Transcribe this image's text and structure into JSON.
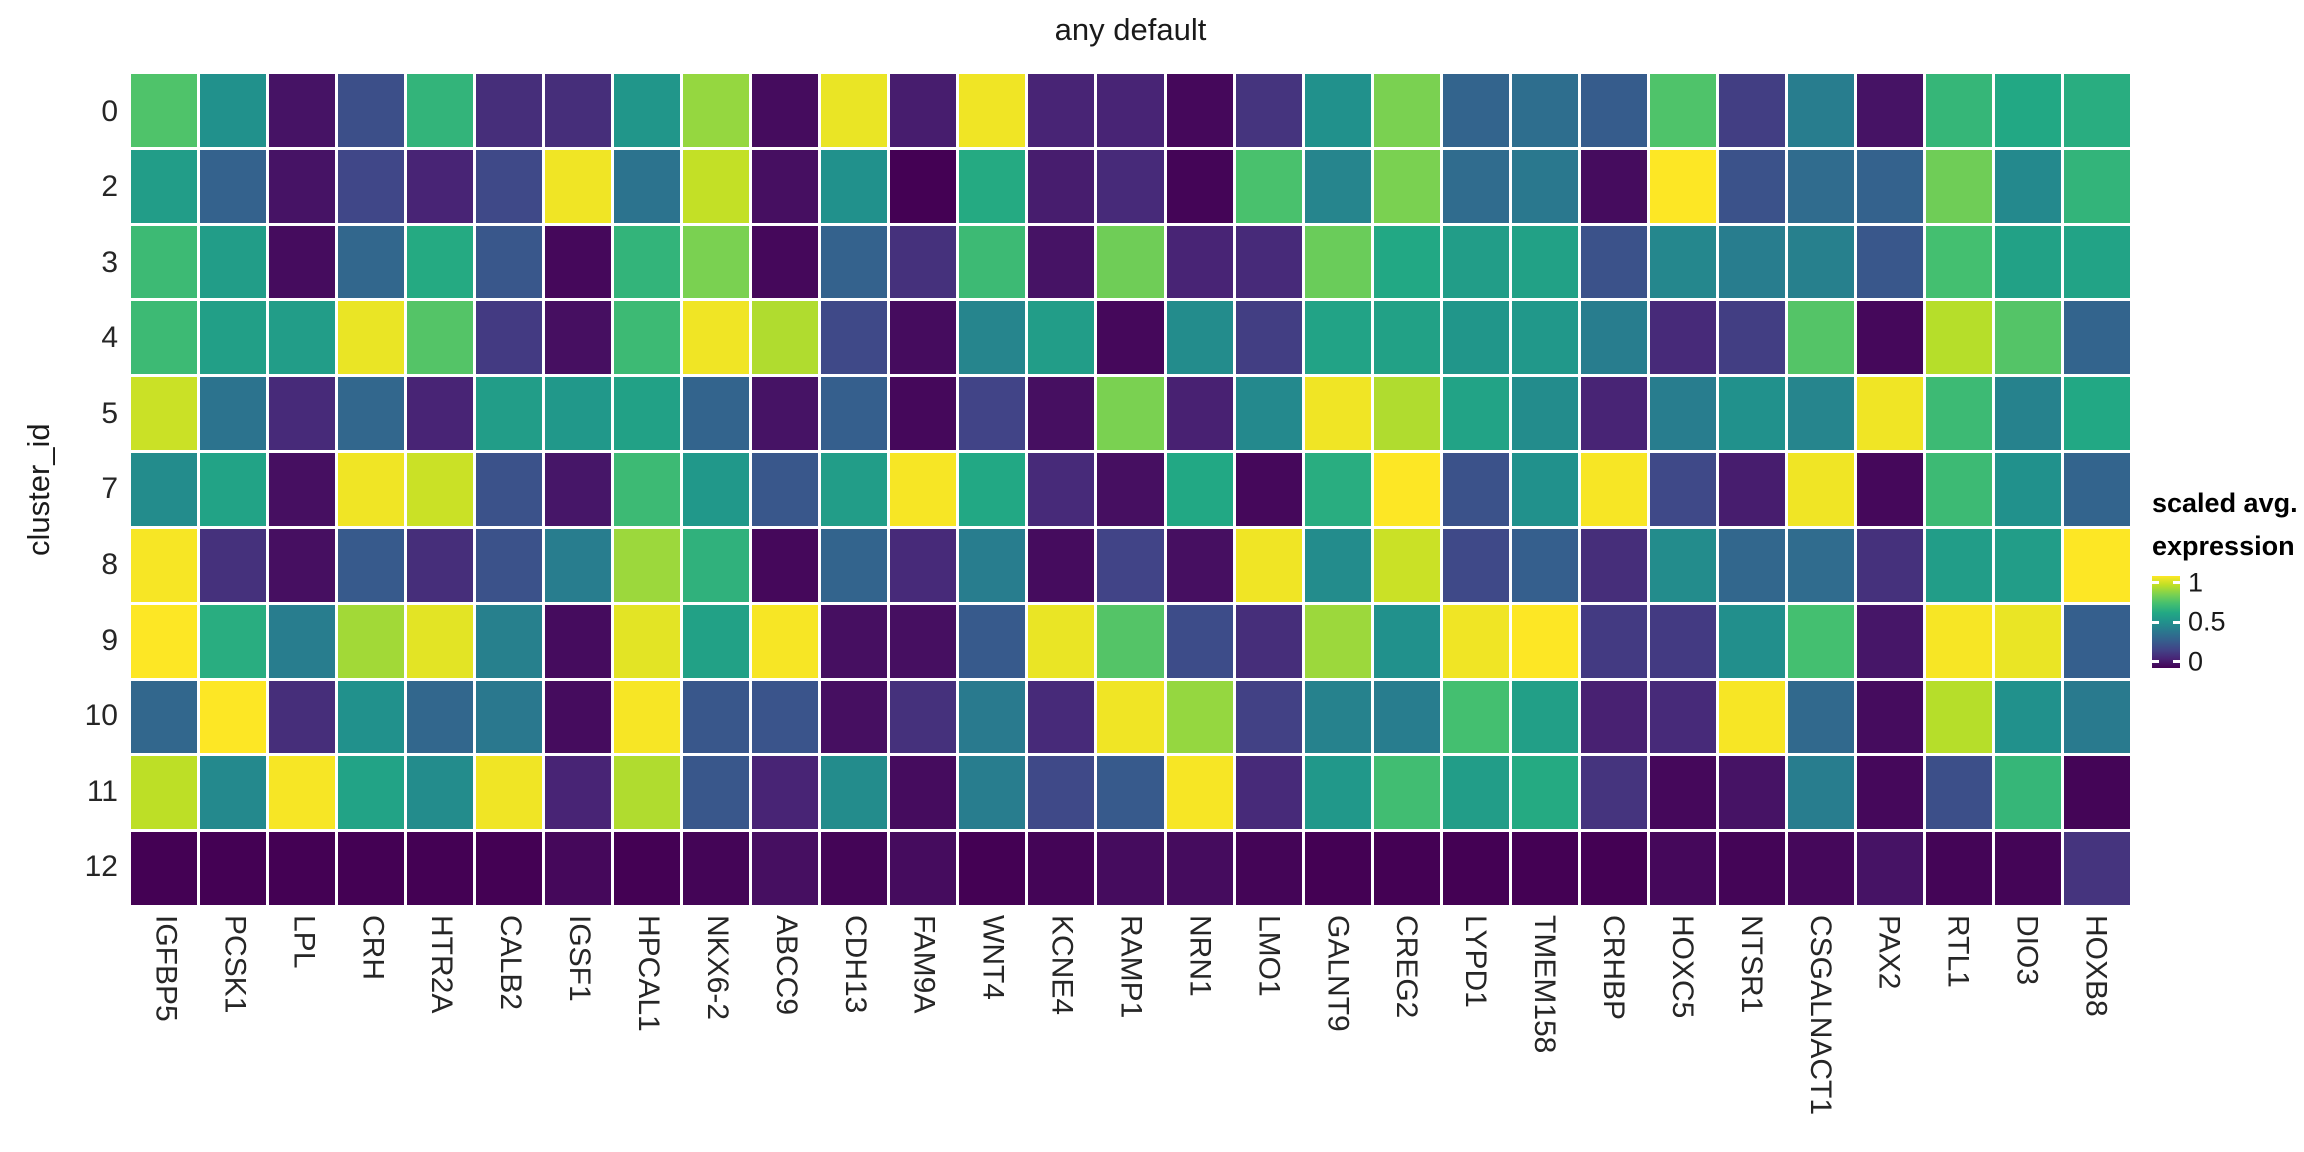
{
  "title": "any default",
  "y_axis": {
    "title": "cluster_id",
    "labels": [
      "0",
      "2",
      "3",
      "4",
      "5",
      "7",
      "8",
      "9",
      "10",
      "11",
      "12"
    ]
  },
  "x_axis": {
    "genes": [
      "IGFBP5",
      "PCSK1",
      "LPL",
      "CRH",
      "HTR2A",
      "CALB2",
      "IGSF1",
      "HPCAL1",
      "NKX6-2",
      "ABCC9",
      "CDH13",
      "FAM9A",
      "WNT4",
      "KCNE4",
      "RAMP1",
      "NRN1",
      "LMO1",
      "GALNT9",
      "CREG2",
      "LYPD1",
      "TMEM158",
      "CRHBP",
      "HOXC5",
      "NTSR1",
      "CSGALNACT1",
      "PAX2",
      "RTL1",
      "DIO3",
      "HOXB8"
    ]
  },
  "legend": {
    "title_line1": "scaled avg.",
    "title_line2": "expression",
    "ticks": [
      {
        "label": "1",
        "position": 0.07
      },
      {
        "label": "0.5",
        "position": 0.5
      },
      {
        "label": "0",
        "position": 0.93
      }
    ]
  },
  "colors": {
    "background": "#ffffff",
    "grid_gap": "#ffffff",
    "text": "#262626",
    "viridis_stops": [
      "#440154",
      "#482475",
      "#414487",
      "#355f8d",
      "#2a788e",
      "#21918c",
      "#22a884",
      "#44bf70",
      "#7ad151",
      "#bddf26",
      "#fde725"
    ]
  },
  "chart_data": {
    "type": "heatmap",
    "title": "any default",
    "xlabel": "",
    "ylabel": "cluster_id",
    "legend_title": "scaled avg. expression",
    "scale_range": [
      0,
      1
    ],
    "x": [
      "IGFBP5",
      "PCSK1",
      "LPL",
      "CRH",
      "HTR2A",
      "CALB2",
      "IGSF1",
      "HPCAL1",
      "NKX6-2",
      "ABCC9",
      "CDH13",
      "FAM9A",
      "WNT4",
      "KCNE4",
      "RAMP1",
      "NRN1",
      "LMO1",
      "GALNT9",
      "CREG2",
      "LYPD1",
      "TMEM158",
      "CRHBP",
      "HOXC5",
      "NTSR1",
      "CSGALNACT1",
      "PAX2",
      "RTL1",
      "DIO3",
      "HOXB8"
    ],
    "rows": [
      {
        "cluster": "0",
        "values": [
          0.72,
          0.5,
          0.05,
          0.24,
          0.65,
          0.13,
          0.13,
          0.52,
          0.84,
          0.03,
          0.97,
          0.08,
          0.98,
          0.1,
          0.1,
          0.02,
          0.15,
          0.5,
          0.8,
          0.32,
          0.36,
          0.29,
          0.72,
          0.18,
          0.42,
          0.05,
          0.66,
          0.6,
          0.62
        ]
      },
      {
        "cluster": "2",
        "values": [
          0.55,
          0.31,
          0.05,
          0.21,
          0.1,
          0.22,
          0.98,
          0.38,
          0.91,
          0.04,
          0.5,
          0.0,
          0.61,
          0.08,
          0.12,
          0.01,
          0.71,
          0.45,
          0.8,
          0.35,
          0.4,
          0.03,
          1.0,
          0.25,
          0.35,
          0.31,
          0.78,
          0.47,
          0.65
        ]
      },
      {
        "cluster": "3",
        "values": [
          0.68,
          0.55,
          0.03,
          0.33,
          0.61,
          0.27,
          0.02,
          0.65,
          0.8,
          0.02,
          0.31,
          0.14,
          0.68,
          0.05,
          0.78,
          0.1,
          0.12,
          0.77,
          0.6,
          0.55,
          0.57,
          0.25,
          0.46,
          0.42,
          0.43,
          0.27,
          0.7,
          0.57,
          0.58
        ]
      },
      {
        "cluster": "4",
        "values": [
          0.68,
          0.56,
          0.55,
          0.97,
          0.73,
          0.17,
          0.04,
          0.68,
          0.98,
          0.88,
          0.22,
          0.03,
          0.45,
          0.55,
          0.02,
          0.48,
          0.18,
          0.58,
          0.57,
          0.52,
          0.53,
          0.42,
          0.12,
          0.18,
          0.73,
          0.02,
          0.89,
          0.73,
          0.32
        ]
      },
      {
        "cluster": "5",
        "values": [
          0.92,
          0.38,
          0.12,
          0.33,
          0.1,
          0.55,
          0.53,
          0.57,
          0.32,
          0.05,
          0.3,
          0.02,
          0.2,
          0.04,
          0.8,
          0.09,
          0.47,
          0.98,
          0.88,
          0.58,
          0.48,
          0.1,
          0.42,
          0.5,
          0.45,
          0.98,
          0.68,
          0.44,
          0.6
        ]
      },
      {
        "cluster": "7",
        "values": [
          0.48,
          0.58,
          0.04,
          0.98,
          0.92,
          0.25,
          0.06,
          0.68,
          0.53,
          0.27,
          0.55,
          0.99,
          0.6,
          0.12,
          0.04,
          0.6,
          0.02,
          0.62,
          1.0,
          0.25,
          0.5,
          0.99,
          0.22,
          0.08,
          0.98,
          0.02,
          0.68,
          0.5,
          0.32
        ]
      },
      {
        "cluster": "8",
        "values": [
          0.99,
          0.14,
          0.04,
          0.28,
          0.13,
          0.25,
          0.42,
          0.85,
          0.64,
          0.02,
          0.32,
          0.12,
          0.42,
          0.03,
          0.2,
          0.04,
          0.98,
          0.48,
          0.92,
          0.22,
          0.3,
          0.13,
          0.48,
          0.33,
          0.35,
          0.14,
          0.55,
          0.55,
          1.0
        ]
      },
      {
        "cluster": "9",
        "values": [
          1.0,
          0.62,
          0.42,
          0.86,
          0.96,
          0.43,
          0.03,
          0.96,
          0.57,
          0.99,
          0.04,
          0.04,
          0.28,
          0.97,
          0.73,
          0.23,
          0.13,
          0.85,
          0.5,
          0.98,
          1.0,
          0.17,
          0.17,
          0.49,
          0.7,
          0.06,
          0.99,
          0.97,
          0.3
        ]
      },
      {
        "cluster": "10",
        "values": [
          0.33,
          1.0,
          0.13,
          0.5,
          0.33,
          0.4,
          0.03,
          0.99,
          0.27,
          0.26,
          0.04,
          0.14,
          0.41,
          0.12,
          0.98,
          0.84,
          0.19,
          0.44,
          0.42,
          0.7,
          0.56,
          0.09,
          0.12,
          0.99,
          0.34,
          0.03,
          0.89,
          0.5,
          0.41
        ]
      },
      {
        "cluster": "11",
        "values": [
          0.9,
          0.47,
          0.99,
          0.58,
          0.48,
          0.98,
          0.1,
          0.88,
          0.27,
          0.1,
          0.48,
          0.03,
          0.42,
          0.22,
          0.28,
          0.99,
          0.12,
          0.53,
          0.69,
          0.55,
          0.61,
          0.15,
          0.02,
          0.05,
          0.42,
          0.02,
          0.24,
          0.66,
          0.01
        ]
      },
      {
        "cluster": "12",
        "values": [
          0.0,
          0.0,
          0.0,
          0.0,
          0.0,
          0.0,
          0.02,
          0.0,
          0.01,
          0.04,
          0.01,
          0.03,
          0.0,
          0.01,
          0.03,
          0.03,
          0.01,
          0.0,
          0.0,
          0.0,
          0.0,
          0.0,
          0.02,
          0.01,
          0.02,
          0.05,
          0.01,
          0.01,
          0.15
        ]
      }
    ]
  }
}
